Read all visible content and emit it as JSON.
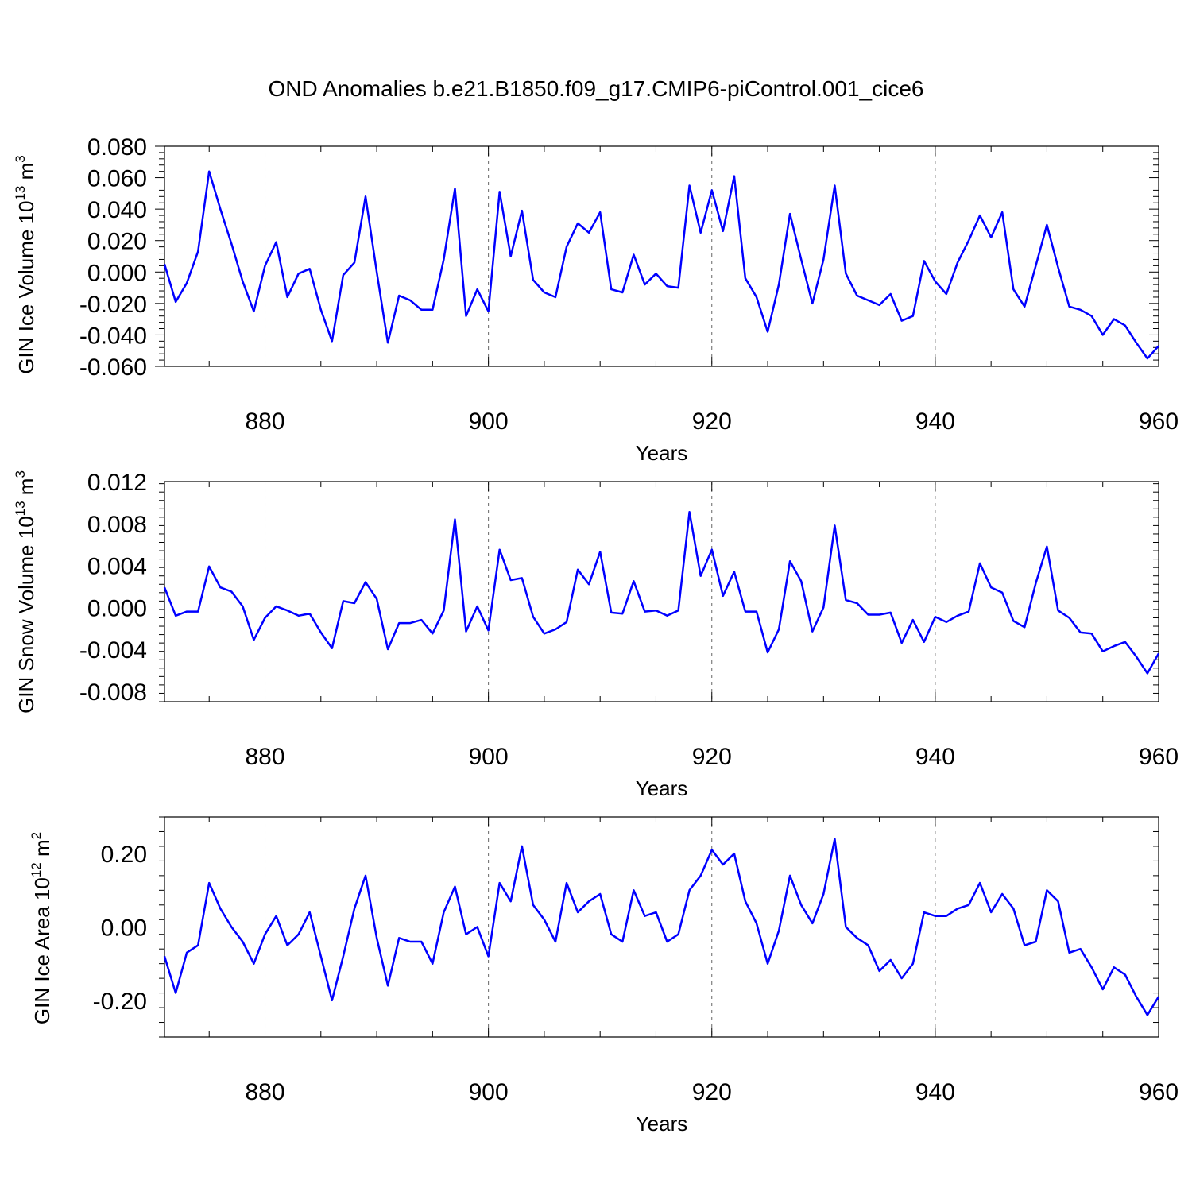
{
  "figure": {
    "title": "OND Anomalies b.e21.B1850.f09_g17.CMIP6-piControl.001_cice6"
  },
  "chart_data": [
    {
      "type": "line",
      "ylabel": "GIN Ice Volume 10",
      "ylabel_exp": "13",
      "ylabel_unit": " m",
      "ylabel_unit_exp": "3",
      "xlabel": "Years",
      "xlim": [
        871,
        960
      ],
      "ylim": [
        -0.06,
        0.08
      ],
      "xticks": [
        880,
        900,
        920,
        940,
        960
      ],
      "xtick_labels": [
        "880",
        "900",
        "920",
        "940",
        "960"
      ],
      "yticks": [
        -0.06,
        -0.04,
        -0.02,
        0.0,
        0.02,
        0.04,
        0.06,
        0.08
      ],
      "ytick_labels": [
        "-0.060",
        "-0.040",
        "-0.020",
        "0.000",
        "0.020",
        "0.040",
        "0.060",
        "0.080"
      ],
      "color": "#0000ff",
      "x": [
        871,
        872,
        873,
        874,
        875,
        876,
        877,
        878,
        879,
        880,
        881,
        882,
        883,
        884,
        885,
        886,
        887,
        888,
        889,
        890,
        891,
        892,
        893,
        894,
        895,
        896,
        897,
        898,
        899,
        900,
        901,
        902,
        903,
        904,
        905,
        906,
        907,
        908,
        909,
        910,
        911,
        912,
        913,
        914,
        915,
        916,
        917,
        918,
        919,
        920,
        921,
        922,
        923,
        924,
        925,
        926,
        927,
        928,
        929,
        930,
        931,
        932,
        933,
        934,
        935,
        936,
        937,
        938,
        939,
        940,
        941,
        942,
        943,
        944,
        945,
        946,
        947,
        948,
        949,
        950,
        951,
        952,
        953,
        954,
        955,
        956,
        957,
        958,
        959,
        960
      ],
      "values": [
        0.005,
        -0.019,
        -0.007,
        0.013,
        0.064,
        0.04,
        0.018,
        -0.006,
        -0.025,
        0.004,
        0.019,
        -0.016,
        -0.001,
        0.002,
        -0.024,
        -0.044,
        -0.002,
        0.006,
        0.048,
        0.0,
        -0.045,
        -0.015,
        -0.018,
        -0.024,
        -0.024,
        0.008,
        0.053,
        -0.028,
        -0.011,
        -0.025,
        0.051,
        0.01,
        0.039,
        -0.005,
        -0.013,
        -0.016,
        0.016,
        0.031,
        0.025,
        0.038,
        -0.011,
        -0.013,
        0.011,
        -0.008,
        -0.001,
        -0.009,
        -0.01,
        0.055,
        0.025,
        0.052,
        0.026,
        0.061,
        -0.004,
        -0.016,
        -0.038,
        -0.008,
        0.037,
        0.008,
        -0.02,
        0.008,
        0.055,
        -0.001,
        -0.015,
        -0.018,
        -0.021,
        -0.014,
        -0.031,
        -0.028,
        0.007,
        -0.006,
        -0.014,
        0.006,
        0.02,
        0.036,
        0.022,
        0.038,
        -0.011,
        -0.022,
        0.004,
        0.03,
        0.003,
        -0.022,
        -0.024,
        -0.028,
        -0.04,
        -0.03,
        -0.034,
        -0.045,
        -0.055,
        -0.047
      ]
    },
    {
      "type": "line",
      "ylabel": "GIN Snow Volume 10",
      "ylabel_exp": "13",
      "ylabel_unit": " m",
      "ylabel_unit_exp": "3",
      "xlabel": "Years",
      "xlim": [
        871,
        960
      ],
      "ylim": [
        -0.009,
        0.012
      ],
      "xticks": [
        880,
        900,
        920,
        940,
        960
      ],
      "xtick_labels": [
        "880",
        "900",
        "920",
        "940",
        "960"
      ],
      "yticks": [
        -0.008,
        -0.004,
        0.0,
        0.004,
        0.008,
        0.012
      ],
      "ytick_labels": [
        "-0.008",
        "-0.004",
        "0.000",
        "0.004",
        "0.008",
        "0.012"
      ],
      "color": "#0000ff",
      "x": [
        871,
        872,
        873,
        874,
        875,
        876,
        877,
        878,
        879,
        880,
        881,
        882,
        883,
        884,
        885,
        886,
        887,
        888,
        889,
        890,
        891,
        892,
        893,
        894,
        895,
        896,
        897,
        898,
        899,
        900,
        901,
        902,
        903,
        904,
        905,
        906,
        907,
        908,
        909,
        910,
        911,
        912,
        913,
        914,
        915,
        916,
        917,
        918,
        919,
        920,
        921,
        922,
        923,
        924,
        925,
        926,
        927,
        928,
        929,
        930,
        931,
        932,
        933,
        934,
        935,
        936,
        937,
        938,
        939,
        940,
        941,
        942,
        943,
        944,
        945,
        946,
        947,
        948,
        949,
        950,
        951,
        952,
        953,
        954,
        955,
        956,
        957,
        958,
        959,
        960
      ],
      "values": [
        0.0019,
        -0.0008,
        -0.0004,
        -0.0004,
        0.0039,
        0.0019,
        0.0015,
        0.0001,
        -0.0031,
        -0.001,
        0.0001,
        -0.0003,
        -0.0008,
        -0.0006,
        -0.0024,
        -0.0039,
        0.0006,
        0.0004,
        0.0024,
        0.0008,
        -0.004,
        -0.0015,
        -0.0015,
        -0.0012,
        -0.0025,
        -0.0003,
        0.0084,
        -0.0023,
        0.0001,
        -0.0022,
        0.0055,
        0.0026,
        0.0028,
        -0.0009,
        -0.0025,
        -0.0021,
        -0.0014,
        0.0036,
        0.0022,
        0.0053,
        -0.0005,
        -0.0006,
        0.0025,
        -0.0004,
        -0.0003,
        -0.0008,
        -0.0003,
        0.0091,
        0.003,
        0.0055,
        0.0011,
        0.0034,
        -0.0004,
        -0.0004,
        -0.0043,
        -0.0021,
        0.0044,
        0.0025,
        -0.0023,
        0.0,
        0.0078,
        0.0007,
        0.0004,
        -0.0007,
        -0.0007,
        -0.0005,
        -0.0034,
        -0.0012,
        -0.0033,
        -0.0009,
        -0.0014,
        -0.0008,
        -0.0004,
        0.0042,
        0.0019,
        0.0014,
        -0.0013,
        -0.0019,
        0.0023,
        0.0058,
        -0.0003,
        -0.001,
        -0.0024,
        -0.0025,
        -0.0042,
        -0.0037,
        -0.0033,
        -0.0047,
        -0.0063,
        -0.0044
      ]
    },
    {
      "type": "line",
      "ylabel": "GIN Ice Area 10",
      "ylabel_exp": "12",
      "ylabel_unit": " m",
      "ylabel_unit_exp": "2",
      "xlabel": "Years",
      "xlim": [
        871,
        960
      ],
      "ylim": [
        -0.3,
        0.3
      ],
      "xticks": [
        880,
        900,
        920,
        940,
        960
      ],
      "xtick_labels": [
        "880",
        "900",
        "920",
        "940",
        "960"
      ],
      "yticks": [
        -0.2,
        0.0,
        0.2
      ],
      "ytick_labels": [
        "-0.20",
        "0.00",
        "0.20"
      ],
      "color": "#0000ff",
      "x": [
        871,
        872,
        873,
        874,
        875,
        876,
        877,
        878,
        879,
        880,
        881,
        882,
        883,
        884,
        885,
        886,
        887,
        888,
        889,
        890,
        891,
        892,
        893,
        894,
        895,
        896,
        897,
        898,
        899,
        900,
        901,
        902,
        903,
        904,
        905,
        906,
        907,
        908,
        909,
        910,
        911,
        912,
        913,
        914,
        915,
        916,
        917,
        918,
        919,
        920,
        921,
        922,
        923,
        924,
        925,
        926,
        927,
        928,
        929,
        930,
        931,
        932,
        933,
        934,
        935,
        936,
        937,
        938,
        939,
        940,
        941,
        942,
        943,
        944,
        945,
        946,
        947,
        948,
        949,
        950,
        951,
        952,
        953,
        954,
        955,
        956,
        957,
        958,
        959,
        960
      ],
      "values": [
        -0.08,
        -0.18,
        -0.07,
        -0.05,
        0.12,
        0.05,
        0.0,
        -0.04,
        -0.1,
        -0.02,
        0.03,
        -0.05,
        -0.02,
        0.04,
        -0.08,
        -0.2,
        -0.08,
        0.05,
        0.14,
        -0.03,
        -0.16,
        -0.03,
        -0.04,
        -0.04,
        -0.1,
        0.04,
        0.11,
        -0.02,
        0.0,
        -0.08,
        0.12,
        0.07,
        0.22,
        0.06,
        0.02,
        -0.04,
        0.12,
        0.04,
        0.07,
        0.09,
        -0.02,
        -0.04,
        0.1,
        0.03,
        0.04,
        -0.04,
        -0.02,
        0.1,
        0.14,
        0.21,
        0.17,
        0.2,
        0.07,
        0.01,
        -0.1,
        -0.01,
        0.14,
        0.06,
        0.01,
        0.09,
        0.24,
        0.0,
        -0.03,
        -0.05,
        -0.12,
        -0.09,
        -0.14,
        -0.1,
        0.04,
        0.03,
        0.03,
        0.05,
        0.06,
        0.12,
        0.04,
        0.09,
        0.05,
        -0.05,
        -0.04,
        0.1,
        0.07,
        -0.07,
        -0.06,
        -0.11,
        -0.17,
        -0.11,
        -0.13,
        -0.19,
        -0.24,
        -0.19
      ]
    }
  ]
}
